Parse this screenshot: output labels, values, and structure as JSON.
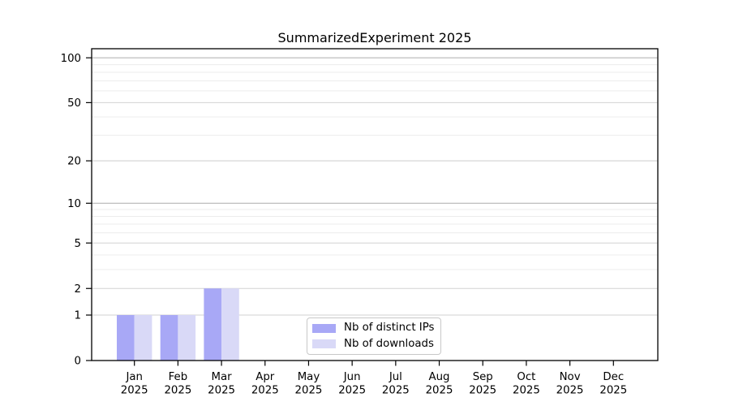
{
  "chart_data": {
    "type": "bar",
    "title": "SummarizedExperiment 2025",
    "categories": [
      "Jan 2025",
      "Feb 2025",
      "Mar 2025",
      "Apr 2025",
      "May 2025",
      "Jun 2025",
      "Jul 2025",
      "Aug 2025",
      "Sep 2025",
      "Oct 2025",
      "Nov 2025",
      "Dec 2025"
    ],
    "series": [
      {
        "name": "Nb of distinct IPs",
        "color": "#a8a8f6",
        "values": [
          1,
          1,
          2,
          0,
          0,
          0,
          0,
          0,
          0,
          0,
          0,
          0
        ]
      },
      {
        "name": "Nb of downloads",
        "color": "#d9d9f7",
        "values": [
          1,
          1,
          2,
          0,
          0,
          0,
          0,
          0,
          0,
          0,
          0,
          0
        ]
      }
    ],
    "xlabel": "",
    "ylabel": "",
    "y_axis": {
      "scale": "log1p",
      "ticks": [
        0,
        1,
        2,
        5,
        10,
        20,
        50,
        100
      ],
      "minor_gridlines": [
        3,
        4,
        6,
        7,
        8,
        9,
        30,
        40,
        60,
        70,
        80,
        90
      ],
      "ylim": [
        0,
        115
      ]
    },
    "legend": {
      "position": "bottom-center"
    },
    "grid": {
      "orientation": "horizontal",
      "major_color": "#d2d2d2",
      "decade_color": "#b6b6b6",
      "minor_color": "#ececec"
    },
    "axis_color": "#000000",
    "background_color": "#ffffff"
  }
}
